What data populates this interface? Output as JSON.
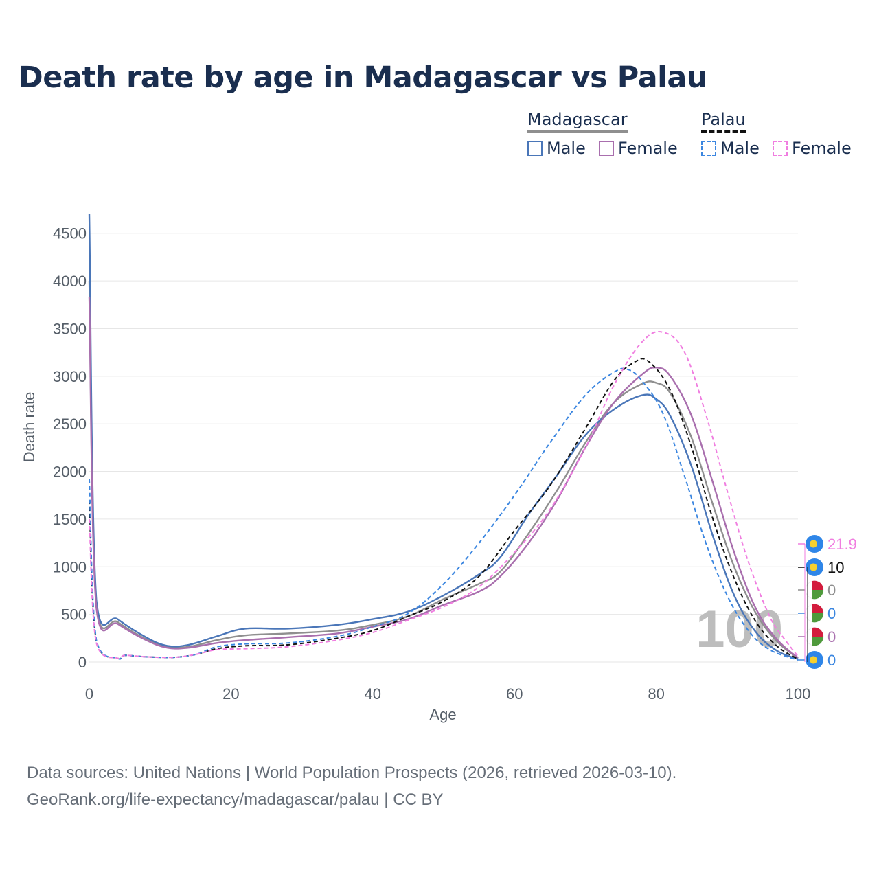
{
  "title": "Death rate by age in Madagascar vs Palau",
  "legend": {
    "groups": [
      {
        "name": "Madagascar",
        "style": "solid",
        "color": "#8f8f8f",
        "items": [
          {
            "label": "Male",
            "color": "#4a76b8"
          },
          {
            "label": "Female",
            "color": "#a96fae"
          }
        ]
      },
      {
        "name": "Palau",
        "style": "dashed",
        "color": "#111111",
        "items": [
          {
            "label": "Male",
            "color": "#3b86e0"
          },
          {
            "label": "Female",
            "color": "#f07ee0"
          }
        ]
      }
    ]
  },
  "chart_data": {
    "type": "line",
    "title": "Death rate by age in Madagascar vs Palau",
    "xlabel": "Age",
    "ylabel": "Death rate",
    "xlim": [
      0,
      100
    ],
    "ylim": [
      0,
      4700
    ],
    "xticks": [
      0,
      20,
      40,
      60,
      80,
      100
    ],
    "yticks": [
      0,
      500,
      1000,
      1500,
      2000,
      2500,
      3000,
      3500,
      4000,
      4500
    ],
    "watermark": "100",
    "series": [
      {
        "name": "Madagascar Total",
        "color": "#8f8f8f",
        "dash": false,
        "points": [
          [
            0,
            4000
          ],
          [
            1,
            600
          ],
          [
            4,
            420
          ],
          [
            8,
            240
          ],
          [
            11,
            160
          ],
          [
            14,
            160
          ],
          [
            18,
            230
          ],
          [
            22,
            280
          ],
          [
            28,
            300
          ],
          [
            35,
            330
          ],
          [
            40,
            390
          ],
          [
            45,
            480
          ],
          [
            50,
            660
          ],
          [
            55,
            820
          ],
          [
            58,
            950
          ],
          [
            62,
            1350
          ],
          [
            66,
            1800
          ],
          [
            70,
            2300
          ],
          [
            74,
            2720
          ],
          [
            78,
            2920
          ],
          [
            80,
            2930
          ],
          [
            82,
            2820
          ],
          [
            85,
            2350
          ],
          [
            88,
            1650
          ],
          [
            91,
            1000
          ],
          [
            94,
            520
          ],
          [
            97,
            220
          ],
          [
            100,
            40
          ]
        ]
      },
      {
        "name": "Madagascar Male",
        "color": "#4a76b8",
        "dash": false,
        "points": [
          [
            0,
            4700
          ],
          [
            1,
            650
          ],
          [
            4,
            450
          ],
          [
            8,
            260
          ],
          [
            11,
            170
          ],
          [
            14,
            180
          ],
          [
            18,
            270
          ],
          [
            22,
            350
          ],
          [
            28,
            350
          ],
          [
            35,
            390
          ],
          [
            40,
            450
          ],
          [
            45,
            530
          ],
          [
            50,
            700
          ],
          [
            55,
            920
          ],
          [
            58,
            1100
          ],
          [
            62,
            1550
          ],
          [
            66,
            1960
          ],
          [
            70,
            2380
          ],
          [
            74,
            2650
          ],
          [
            78,
            2800
          ],
          [
            80,
            2760
          ],
          [
            82,
            2580
          ],
          [
            85,
            2050
          ],
          [
            88,
            1320
          ],
          [
            91,
            700
          ],
          [
            94,
            320
          ],
          [
            97,
            120
          ],
          [
            100,
            30
          ]
        ]
      },
      {
        "name": "Madagascar Female",
        "color": "#a96fae",
        "dash": false,
        "points": [
          [
            0,
            3830
          ],
          [
            1,
            570
          ],
          [
            4,
            400
          ],
          [
            8,
            230
          ],
          [
            11,
            150
          ],
          [
            14,
            150
          ],
          [
            18,
            200
          ],
          [
            22,
            230
          ],
          [
            28,
            260
          ],
          [
            35,
            300
          ],
          [
            40,
            370
          ],
          [
            45,
            450
          ],
          [
            50,
            600
          ],
          [
            55,
            740
          ],
          [
            58,
            900
          ],
          [
            62,
            1250
          ],
          [
            66,
            1700
          ],
          [
            70,
            2250
          ],
          [
            74,
            2720
          ],
          [
            78,
            3020
          ],
          [
            80,
            3090
          ],
          [
            82,
            3000
          ],
          [
            85,
            2580
          ],
          [
            88,
            1880
          ],
          [
            91,
            1150
          ],
          [
            94,
            570
          ],
          [
            97,
            240
          ],
          [
            100,
            45
          ]
        ]
      },
      {
        "name": "Palau Total",
        "color": "#111111",
        "dash": true,
        "points": [
          [
            0,
            1700
          ],
          [
            1,
            220
          ],
          [
            4,
            40
          ],
          [
            5,
            70
          ],
          [
            8,
            55
          ],
          [
            12,
            50
          ],
          [
            15,
            80
          ],
          [
            18,
            140
          ],
          [
            22,
            170
          ],
          [
            28,
            180
          ],
          [
            35,
            250
          ],
          [
            40,
            330
          ],
          [
            45,
            480
          ],
          [
            50,
            640
          ],
          [
            55,
            900
          ],
          [
            60,
            1380
          ],
          [
            65,
            1850
          ],
          [
            70,
            2450
          ],
          [
            74,
            2950
          ],
          [
            77,
            3150
          ],
          [
            79,
            3150
          ],
          [
            82,
            2850
          ],
          [
            85,
            2250
          ],
          [
            88,
            1500
          ],
          [
            91,
            880
          ],
          [
            94,
            430
          ],
          [
            97,
            170
          ],
          [
            100,
            30
          ]
        ]
      },
      {
        "name": "Palau Male",
        "color": "#3b86e0",
        "dash": true,
        "points": [
          [
            0,
            1920
          ],
          [
            1,
            230
          ],
          [
            4,
            40
          ],
          [
            5,
            70
          ],
          [
            8,
            55
          ],
          [
            12,
            50
          ],
          [
            15,
            80
          ],
          [
            18,
            160
          ],
          [
            22,
            190
          ],
          [
            28,
            200
          ],
          [
            35,
            270
          ],
          [
            40,
            370
          ],
          [
            45,
            510
          ],
          [
            50,
            820
          ],
          [
            55,
            1250
          ],
          [
            60,
            1750
          ],
          [
            65,
            2300
          ],
          [
            70,
            2800
          ],
          [
            74,
            3040
          ],
          [
            76,
            3070
          ],
          [
            78,
            2950
          ],
          [
            81,
            2600
          ],
          [
            84,
            1950
          ],
          [
            87,
            1250
          ],
          [
            90,
            700
          ],
          [
            93,
            330
          ],
          [
            96,
            130
          ],
          [
            100,
            20
          ]
        ]
      },
      {
        "name": "Palau Female",
        "color": "#f07ee0",
        "dash": true,
        "points": [
          [
            0,
            1500
          ],
          [
            1,
            200
          ],
          [
            4,
            40
          ],
          [
            5,
            70
          ],
          [
            8,
            55
          ],
          [
            12,
            50
          ],
          [
            15,
            80
          ],
          [
            18,
            130
          ],
          [
            22,
            140
          ],
          [
            28,
            160
          ],
          [
            35,
            230
          ],
          [
            40,
            310
          ],
          [
            45,
            440
          ],
          [
            50,
            580
          ],
          [
            55,
            790
          ],
          [
            60,
            1150
          ],
          [
            65,
            1600
          ],
          [
            70,
            2250
          ],
          [
            74,
            2900
          ],
          [
            78,
            3360
          ],
          [
            81,
            3460
          ],
          [
            84,
            3250
          ],
          [
            87,
            2600
          ],
          [
            90,
            1800
          ],
          [
            93,
            1050
          ],
          [
            96,
            480
          ],
          [
            98,
            250
          ],
          [
            100,
            60
          ]
        ]
      }
    ],
    "end_labels": [
      {
        "text": "21.9",
        "color": "#f07ee0",
        "marker": "flag-palau"
      },
      {
        "text": "10",
        "color": "#111111",
        "marker": "flag-palau"
      },
      {
        "text": "0",
        "color": "#8f8f8f",
        "marker": "flag-madagascar"
      },
      {
        "text": "0",
        "color": "#3b86e0",
        "marker": "flag-madagascar"
      },
      {
        "text": "0",
        "color": "#a96fae",
        "marker": "flag-madagascar"
      },
      {
        "text": "0",
        "color": "#3b86e0",
        "marker": "flag-palau"
      }
    ]
  },
  "source": {
    "line1": "Data sources: United Nations | World Population Prospects (2026, retrieved 2026-03-10).",
    "line2": "GeoRank.org/life-expectancy/madagascar/palau | CC BY"
  }
}
